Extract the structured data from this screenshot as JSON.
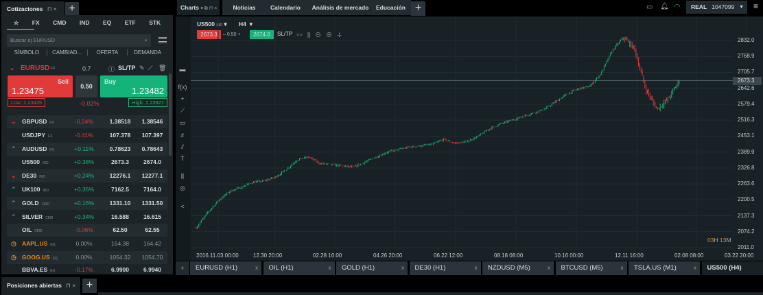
{
  "left_panel": {
    "tab": "Cotizaciones",
    "categories": [
      "☆",
      "FX",
      "CMD",
      "IND",
      "EQ",
      "ETF",
      "STK"
    ],
    "search_placeholder": "Buscar ej EURUSD",
    "columns": [
      "SÍMBOLO",
      "CAMBIAD...",
      "OFERTA",
      "DEMANDA"
    ],
    "featured": {
      "symbol": "EURUSD",
      "type": "FX",
      "spread_top": "0.7",
      "sltp": "SL/TP",
      "sell_label": "Sell",
      "sell_price": "1.23475",
      "spread": "0.50",
      "buy_label": "Buy",
      "buy_price": "1.23482",
      "low": "Low: 1.23425",
      "change": "-0.02%",
      "high": "High: 1.23921"
    },
    "rows": [
      {
        "arrow": "down",
        "symbol": "GBPUSD",
        "type": "FX",
        "change": "-0.24%",
        "bid": "1.38518",
        "ask": "1.38546",
        "tone": "dn"
      },
      {
        "arrow": "",
        "symbol": "USDJPY",
        "type": "FX",
        "change": "-0.41%",
        "bid": "107.378",
        "ask": "107.397",
        "tone": "dn"
      },
      {
        "arrow": "up",
        "symbol": "AUDUSD",
        "type": "FX",
        "change": "+0.11%",
        "bid": "0.78623",
        "ask": "0.78643",
        "tone": "up"
      },
      {
        "arrow": "",
        "symbol": "US500",
        "type": "IND",
        "change": "+0.38%",
        "bid": "2673.3",
        "ask": "2674.0",
        "tone": "up"
      },
      {
        "arrow": "down",
        "symbol": "DE30",
        "type": "IND",
        "change": "+0.24%",
        "bid": "12276.1",
        "ask": "12277.1",
        "tone": "up"
      },
      {
        "arrow": "up",
        "symbol": "UK100",
        "type": "IND",
        "change": "+0.35%",
        "bid": "7162.5",
        "ask": "7164.0",
        "tone": "up"
      },
      {
        "arrow": "up",
        "symbol": "GOLD",
        "type": "CMD",
        "change": "+0.16%",
        "bid": "1331.10",
        "ask": "1331.50",
        "tone": "up"
      },
      {
        "arrow": "up",
        "symbol": "SILVER",
        "type": "CMD",
        "change": "+0.34%",
        "bid": "16.588",
        "ask": "16.615",
        "tone": "up"
      },
      {
        "arrow": "",
        "symbol": "OIL",
        "type": "CMD",
        "change": "-0.06%",
        "bid": "62.50",
        "ask": "62.55",
        "tone": "dn"
      },
      {
        "arrow": "clock",
        "symbol": "AAPL.US",
        "type": "EQ",
        "change": "0.00%",
        "bid": "164.38",
        "ask": "164.42",
        "tone": "mut"
      },
      {
        "arrow": "clock",
        "symbol": "GOOG.US",
        "type": "EQ",
        "change": "0.00%",
        "bid": "1054.32",
        "ask": "1054.70",
        "tone": "mut"
      },
      {
        "arrow": "",
        "symbol": "BBVA.ES",
        "type": "EQ",
        "change": "-0.17%",
        "bid": "6.9900",
        "ask": "6.9940",
        "tone": "dn"
      }
    ]
  },
  "top_tabs": [
    "Charts",
    "Noticias",
    "Calendario",
    "Análisis de mercado",
    "Educación"
  ],
  "account": {
    "mode": "REAL",
    "number": "1047099"
  },
  "chart": {
    "symbol": "US500",
    "type": "IND",
    "timeframe": "H4",
    "sell": "2673.3",
    "spread": "0.50",
    "buy": "2674.0",
    "sltp": "SL/TP",
    "current": "2673.3",
    "countdown_h": "03",
    "countdown_m": "13",
    "y_ticks": [
      "2832.0",
      "2768.9",
      "2705.7",
      "2642.6",
      "2579.4",
      "2516.3",
      "2453.1",
      "2389.9",
      "2326.8",
      "2263.6",
      "2200.5",
      "2137.3",
      "2074.2",
      "2011.0"
    ],
    "x_ticks": [
      "2016.11.03 00:00",
      "12.30 20:00",
      "02.28 16:00",
      "04.26 20:00",
      "06.22 12:00",
      "08.18 08:00",
      "10.16 00:00",
      "12.11 16:00",
      "02.08 08:00",
      "03.22 20:00"
    ]
  },
  "chart_data": {
    "type": "candlestick",
    "ylim": [
      2011.0,
      2832.0
    ],
    "closes": [
      2090,
      2150,
      2200,
      2235,
      2250,
      2270,
      2275,
      2290,
      2320,
      2360,
      2370,
      2345,
      2340,
      2335,
      2330,
      2350,
      2370,
      2390,
      2400,
      2410,
      2415,
      2420,
      2440,
      2425,
      2430,
      2450,
      2480,
      2500,
      2515,
      2530,
      2545,
      2560,
      2590,
      2620,
      2640,
      2650,
      2700,
      2790,
      2845,
      2800,
      2640,
      2560,
      2600,
      2673
    ],
    "colors": {
      "up": "#1fb47a",
      "down": "#e03a3a"
    }
  },
  "chart_tabs": [
    "EURUSD (H1)",
    "OIL (H1)",
    "GOLD (H1)",
    "DE30 (H1)",
    "NZDUSD (M5)",
    "BTCUSD (M5)",
    "TSLA.US (M1)",
    "US500 (H4)"
  ],
  "bottom_panel": {
    "tab": "Posiciones abiertas"
  }
}
